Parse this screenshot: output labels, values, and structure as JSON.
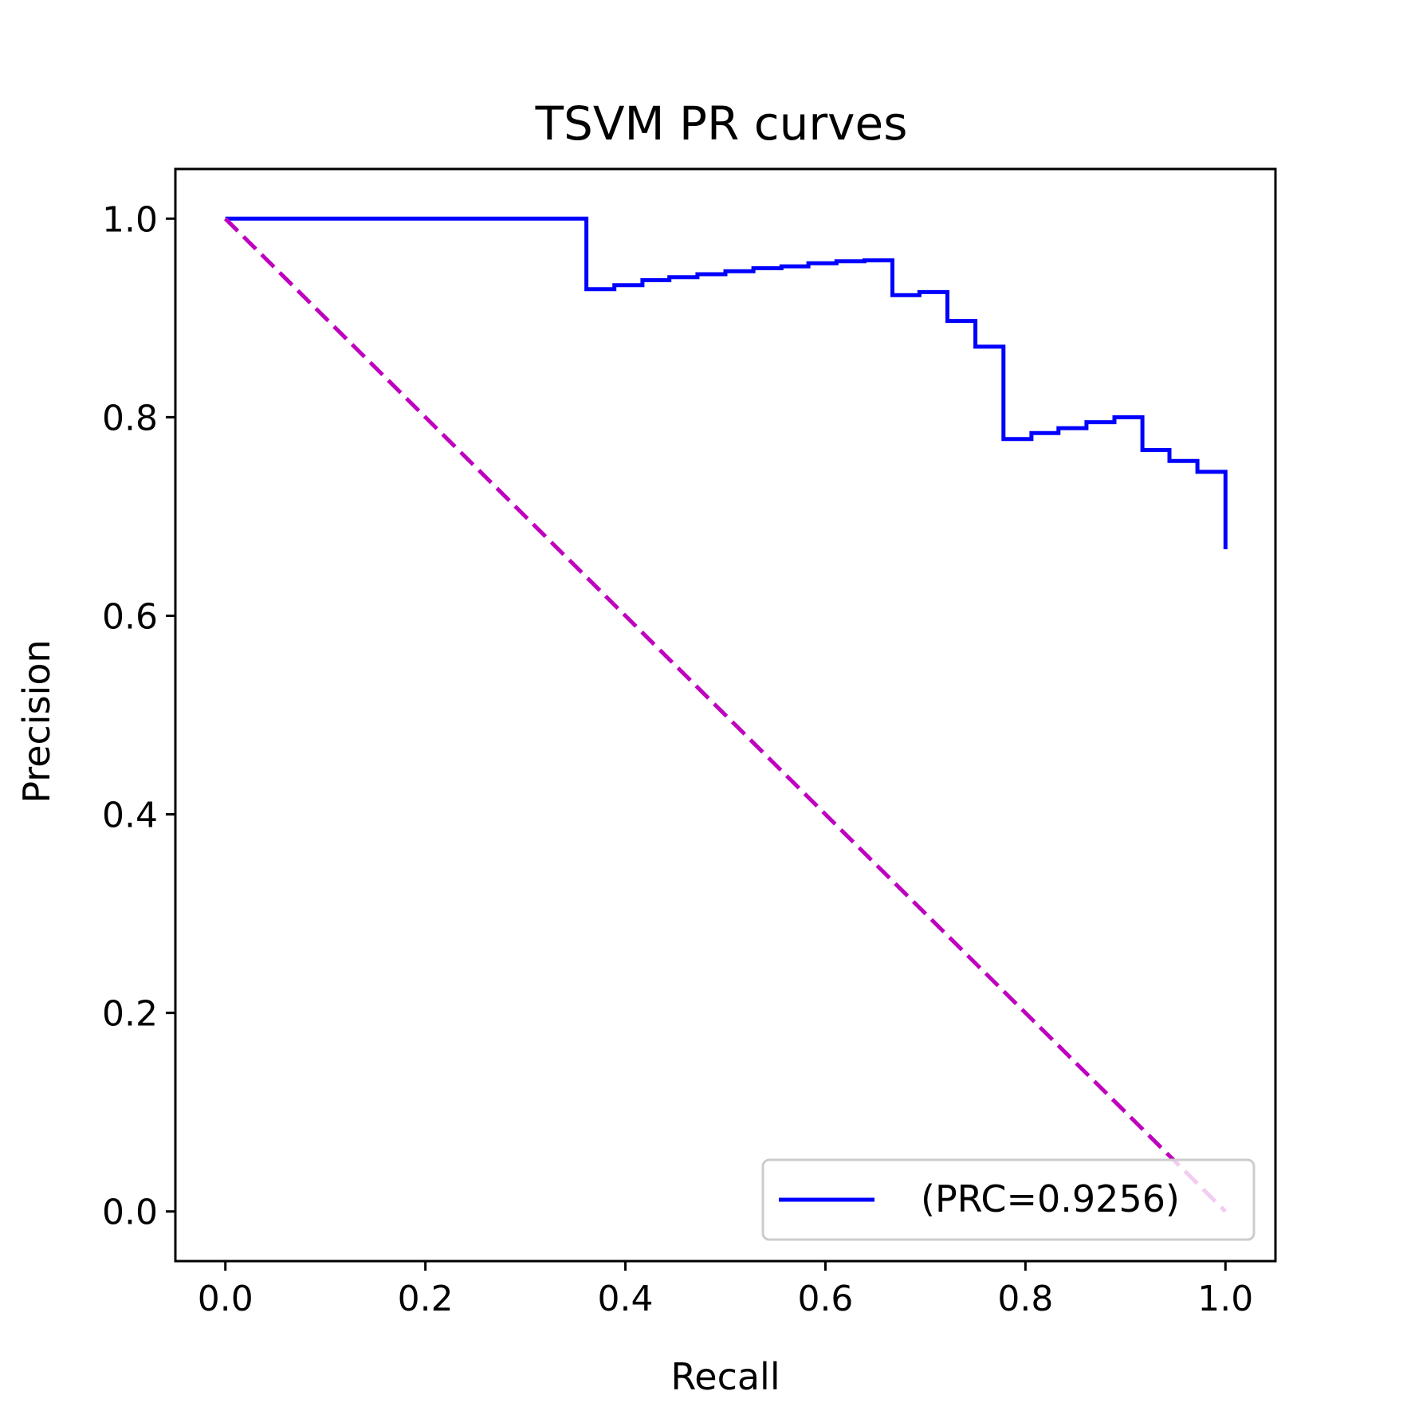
{
  "chart_data": {
    "type": "line",
    "title": "TSVM PR curves",
    "xlabel": "Recall",
    "ylabel": "Precision",
    "xlim": [
      -0.05,
      1.05
    ],
    "ylim": [
      -0.05,
      1.05
    ],
    "xticks": [
      "0.0",
      "0.2",
      "0.4",
      "0.6",
      "0.8",
      "1.0"
    ],
    "yticks": [
      "0.0",
      "0.2",
      "0.4",
      "0.6",
      "0.8",
      "1.0"
    ],
    "grid": false,
    "legend_position": "lower right",
    "series": [
      {
        "name": "(PRC=0.9256)",
        "color": "#0000ff",
        "style": "steps-post",
        "x": [
          0.0,
          0.361,
          0.361,
          0.389,
          0.389,
          0.417,
          0.417,
          0.444,
          0.444,
          0.472,
          0.472,
          0.5,
          0.5,
          0.528,
          0.528,
          0.556,
          0.556,
          0.583,
          0.583,
          0.611,
          0.611,
          0.639,
          0.639,
          0.667,
          0.667,
          0.694,
          0.694,
          0.722,
          0.722,
          0.75,
          0.75,
          0.778,
          0.778,
          0.806,
          0.806,
          0.833,
          0.833,
          0.861,
          0.861,
          0.889,
          0.889,
          0.917,
          0.917,
          0.944,
          0.944,
          0.972,
          0.972,
          1.0,
          1.0
        ],
        "y": [
          1.0,
          1.0,
          0.929,
          0.929,
          0.933,
          0.933,
          0.938,
          0.938,
          0.941,
          0.941,
          0.944,
          0.944,
          0.947,
          0.947,
          0.95,
          0.95,
          0.952,
          0.952,
          0.955,
          0.955,
          0.957,
          0.957,
          0.958,
          0.958,
          0.923,
          0.923,
          0.926,
          0.926,
          0.897,
          0.897,
          0.871,
          0.871,
          0.778,
          0.778,
          0.784,
          0.784,
          0.789,
          0.789,
          0.795,
          0.795,
          0.8,
          0.8,
          0.767,
          0.767,
          0.756,
          0.756,
          0.745,
          0.745,
          0.667
        ]
      },
      {
        "name": "",
        "color": "#bf00bf",
        "style": "dashed",
        "x": [
          0.0,
          1.0
        ],
        "y": [
          1.0,
          0.0
        ]
      }
    ]
  }
}
